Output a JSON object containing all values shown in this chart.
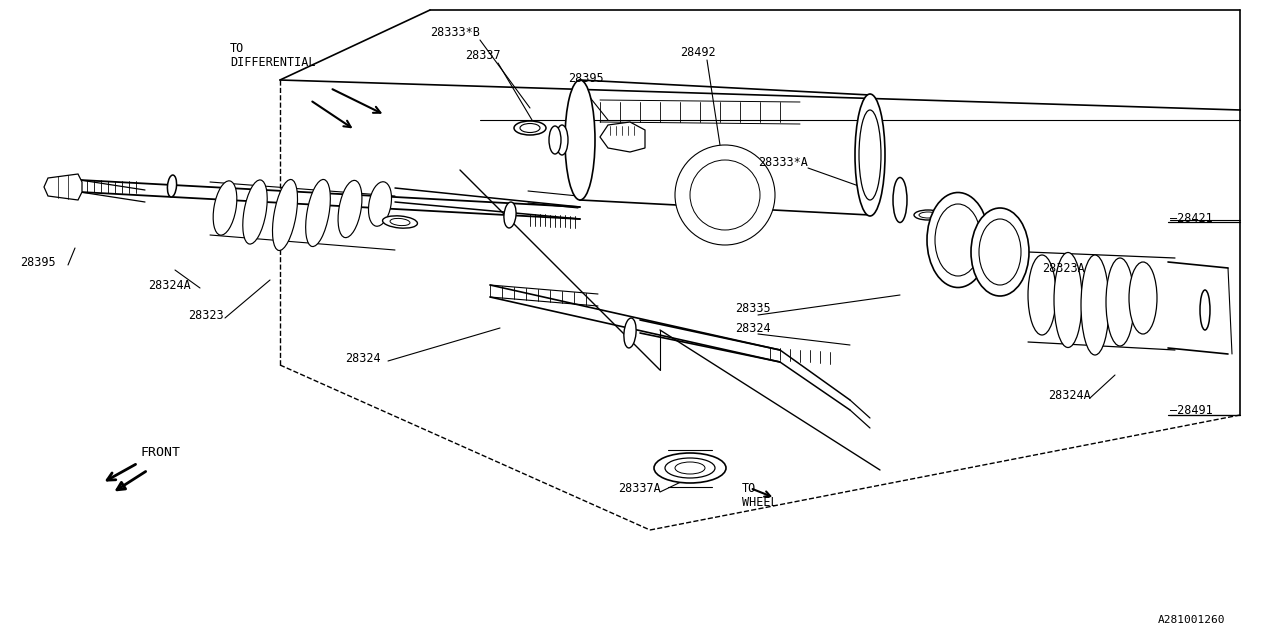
{
  "bg_color": "#ffffff",
  "line_color": "#000000",
  "diagram_id": "A281001260",
  "labels": {
    "to_differential": "TO\nDIFFERENTIAL",
    "to_wheel": "TO\nWHEEL",
    "front": "FRONT",
    "28333B": "28333*B",
    "28337": "28337",
    "28395_top": "28395",
    "28492": "28492",
    "28333A": "28333*A",
    "28421": "28421",
    "28323A": "28323A",
    "28335": "28335",
    "28324_mid": "28324",
    "28324_right": "28324",
    "28395_left": "28395",
    "28324A_left": "28324A",
    "28323": "28323",
    "28324_btm": "28324",
    "28337A": "28337A",
    "28491": "28491",
    "28324A_right": "28324A"
  }
}
